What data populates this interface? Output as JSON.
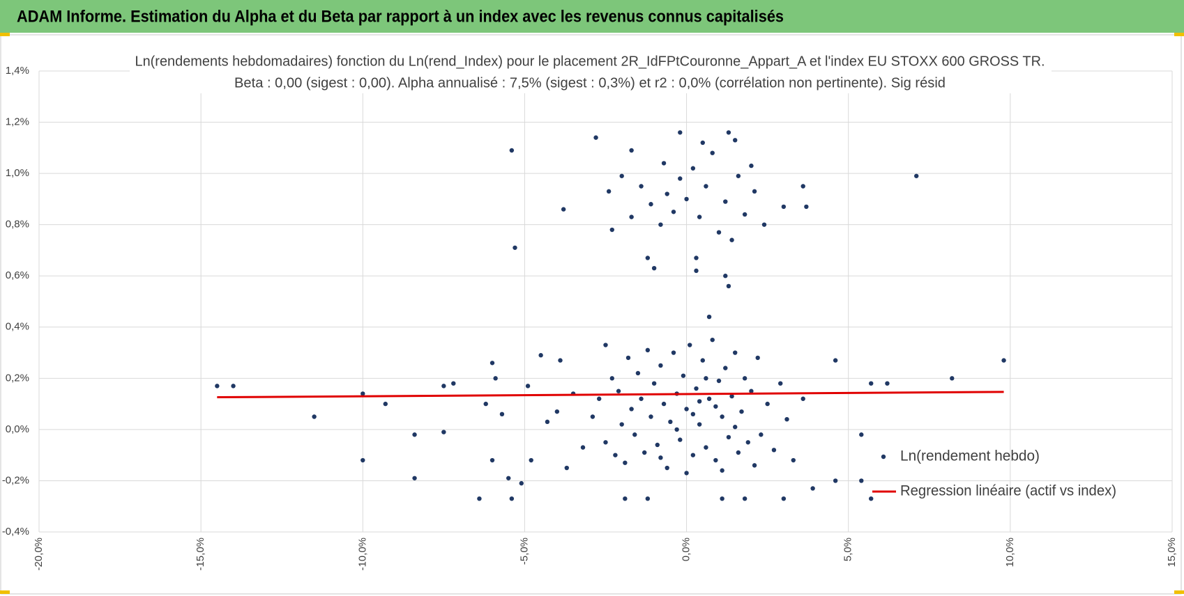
{
  "header": {
    "title": "ADAM Informe. Estimation du Alpha et du Beta par rapport à un index avec les revenus connus capitalisés"
  },
  "chart_data": {
    "type": "scatter",
    "title": "Ln(rendements hebdomadaires) fonction du Ln(rend_Index) pour le placement 2R_IdFPtCouronne_Appart_A et l'index EU STOXX 600 GROSS TR.",
    "subtitle": "Beta : 0,00 (sigest : 0,00). Alpha annualisé : 7,5% (sigest : 0,3%) et r2 : 0,0% (corrélation non pertinente). Sig résid",
    "xlim": [
      -20,
      15
    ],
    "xticks": [
      {
        "value": -20,
        "label": "-20,0%"
      },
      {
        "value": -15,
        "label": "-15,0%"
      },
      {
        "value": -10,
        "label": "-10,0%"
      },
      {
        "value": -5,
        "label": "-5,0%"
      },
      {
        "value": 0,
        "label": "0,0%"
      },
      {
        "value": 5,
        "label": "5,0%"
      },
      {
        "value": 10,
        "label": "10,0%"
      },
      {
        "value": 15,
        "label": "15,0%"
      }
    ],
    "ylim": [
      -0.4,
      1.4
    ],
    "yticks": [
      {
        "value": -0.4,
        "label": "-0,4%"
      },
      {
        "value": -0.2,
        "label": "-0,2%"
      },
      {
        "value": 0,
        "label": "0,0%"
      },
      {
        "value": 0.2,
        "label": "0,2%"
      },
      {
        "value": 0.4,
        "label": "0,4%"
      },
      {
        "value": 0.6,
        "label": "0,6%"
      },
      {
        "value": 0.8,
        "label": "0,8%"
      },
      {
        "value": 1.0,
        "label": "1,0%"
      },
      {
        "value": 1.2,
        "label": "1,2%"
      },
      {
        "value": 1.4,
        "label": "1,4%"
      }
    ],
    "grid": true,
    "legend": "right",
    "series": [
      {
        "name": "Ln(rendement hebdo)",
        "type": "scatter",
        "color": "#203864",
        "x": [
          -14.5,
          -14.0,
          -11.5,
          -10.0,
          -10.0,
          -9.3,
          -8.4,
          -8.4,
          -7.5,
          -7.5,
          -7.2,
          -6.4,
          -6.2,
          -6.0,
          -6.0,
          -5.9,
          -5.7,
          -5.4,
          -5.3,
          -5.5,
          -5.4,
          -5.1,
          -4.9,
          -4.8,
          -4.5,
          -3.8,
          -3.9,
          -3.7,
          -2.8,
          -2.4,
          -2.3,
          -2.0,
          -1.7,
          -1.7,
          -1.2,
          -1.0,
          -0.7,
          -0.2,
          0.3,
          0.3,
          1.2,
          1.3,
          1.3,
          0.7,
          2.0,
          3.0,
          3.6,
          3.7,
          7.1,
          8.2,
          9.8,
          6.2,
          5.7,
          5.7,
          5.4,
          5.4,
          4.6,
          4.6,
          3.9,
          3.0,
          -1.9,
          -1.2,
          1.8,
          1.1,
          -2.9,
          -2.7,
          -2.5,
          -2.5,
          -2.3,
          -2.2,
          -2.1,
          -2.0,
          -1.9,
          -1.8,
          -1.7,
          -1.6,
          -1.5,
          -1.4,
          -1.3,
          -1.2,
          -1.1,
          -1.0,
          -0.9,
          -0.8,
          -0.7,
          -0.6,
          -0.5,
          -0.4,
          -0.3,
          -0.2,
          -0.1,
          0.0,
          0.1,
          0.2,
          0.3,
          0.4,
          0.5,
          0.6,
          0.7,
          0.8,
          0.9,
          1.0,
          1.1,
          1.2,
          1.3,
          1.4,
          1.5,
          1.6,
          1.7,
          1.8,
          1.9,
          2.0,
          2.2,
          2.3,
          2.5,
          2.7,
          2.9,
          3.1,
          3.3,
          3.6,
          -3.2,
          -3.5,
          -4.0,
          -4.3,
          0.4,
          0.2,
          -0.3,
          0.9,
          1.5,
          0.6,
          -0.8,
          1.1,
          0.0,
          2.1,
          -1.4,
          -1.1,
          -0.8,
          -0.6,
          -0.4,
          -0.2,
          0.0,
          0.2,
          0.4,
          0.6,
          0.8,
          1.0,
          1.2,
          1.4,
          1.6,
          1.8,
          2.1,
          2.4,
          0.5,
          1.5
        ],
        "values": [
          0.17,
          0.17,
          0.05,
          0.14,
          -0.12,
          0.1,
          -0.02,
          -0.19,
          0.17,
          -0.01,
          0.18,
          -0.27,
          0.1,
          0.26,
          -0.12,
          0.2,
          0.06,
          1.09,
          0.71,
          -0.19,
          -0.27,
          -0.21,
          0.17,
          -0.12,
          0.29,
          0.86,
          0.27,
          -0.15,
          1.14,
          0.93,
          0.78,
          0.99,
          1.09,
          0.83,
          0.67,
          0.63,
          1.04,
          1.16,
          0.67,
          0.62,
          0.6,
          0.56,
          1.16,
          0.44,
          1.03,
          0.87,
          0.95,
          0.87,
          0.99,
          0.2,
          0.27,
          0.18,
          0.18,
          -0.27,
          -0.2,
          -0.02,
          0.27,
          -0.2,
          -0.23,
          -0.27,
          -0.27,
          -0.27,
          -0.27,
          -0.27,
          0.05,
          0.12,
          0.33,
          -0.05,
          0.2,
          -0.1,
          0.15,
          0.02,
          -0.13,
          0.28,
          0.08,
          -0.02,
          0.22,
          0.12,
          -0.09,
          0.31,
          0.05,
          0.18,
          -0.06,
          0.25,
          0.1,
          -0.15,
          0.03,
          0.3,
          0.14,
          -0.04,
          0.21,
          0.08,
          0.33,
          -0.1,
          0.16,
          0.02,
          0.27,
          -0.07,
          0.12,
          0.35,
          -0.12,
          0.19,
          0.05,
          0.24,
          -0.03,
          0.13,
          0.3,
          -0.09,
          0.07,
          0.2,
          -0.05,
          0.15,
          0.28,
          -0.02,
          0.1,
          -0.08,
          0.18,
          0.04,
          -0.12,
          0.12,
          -0.07,
          0.14,
          0.07,
          0.03,
          0.11,
          0.06,
          0.0,
          0.09,
          0.01,
          0.2,
          -0.11,
          -0.16,
          -0.17,
          -0.14,
          0.95,
          0.88,
          0.8,
          0.92,
          0.85,
          0.98,
          0.9,
          1.02,
          0.83,
          0.95,
          1.08,
          0.77,
          0.89,
          0.74,
          0.99,
          0.84,
          0.93,
          0.8,
          1.12,
          1.13
        ]
      },
      {
        "name": "Regression linéaire (actif vs index)",
        "type": "line",
        "color": "#e00000",
        "x": [
          -14.5,
          9.8
        ],
        "values": [
          0.126,
          0.147
        ]
      }
    ]
  }
}
